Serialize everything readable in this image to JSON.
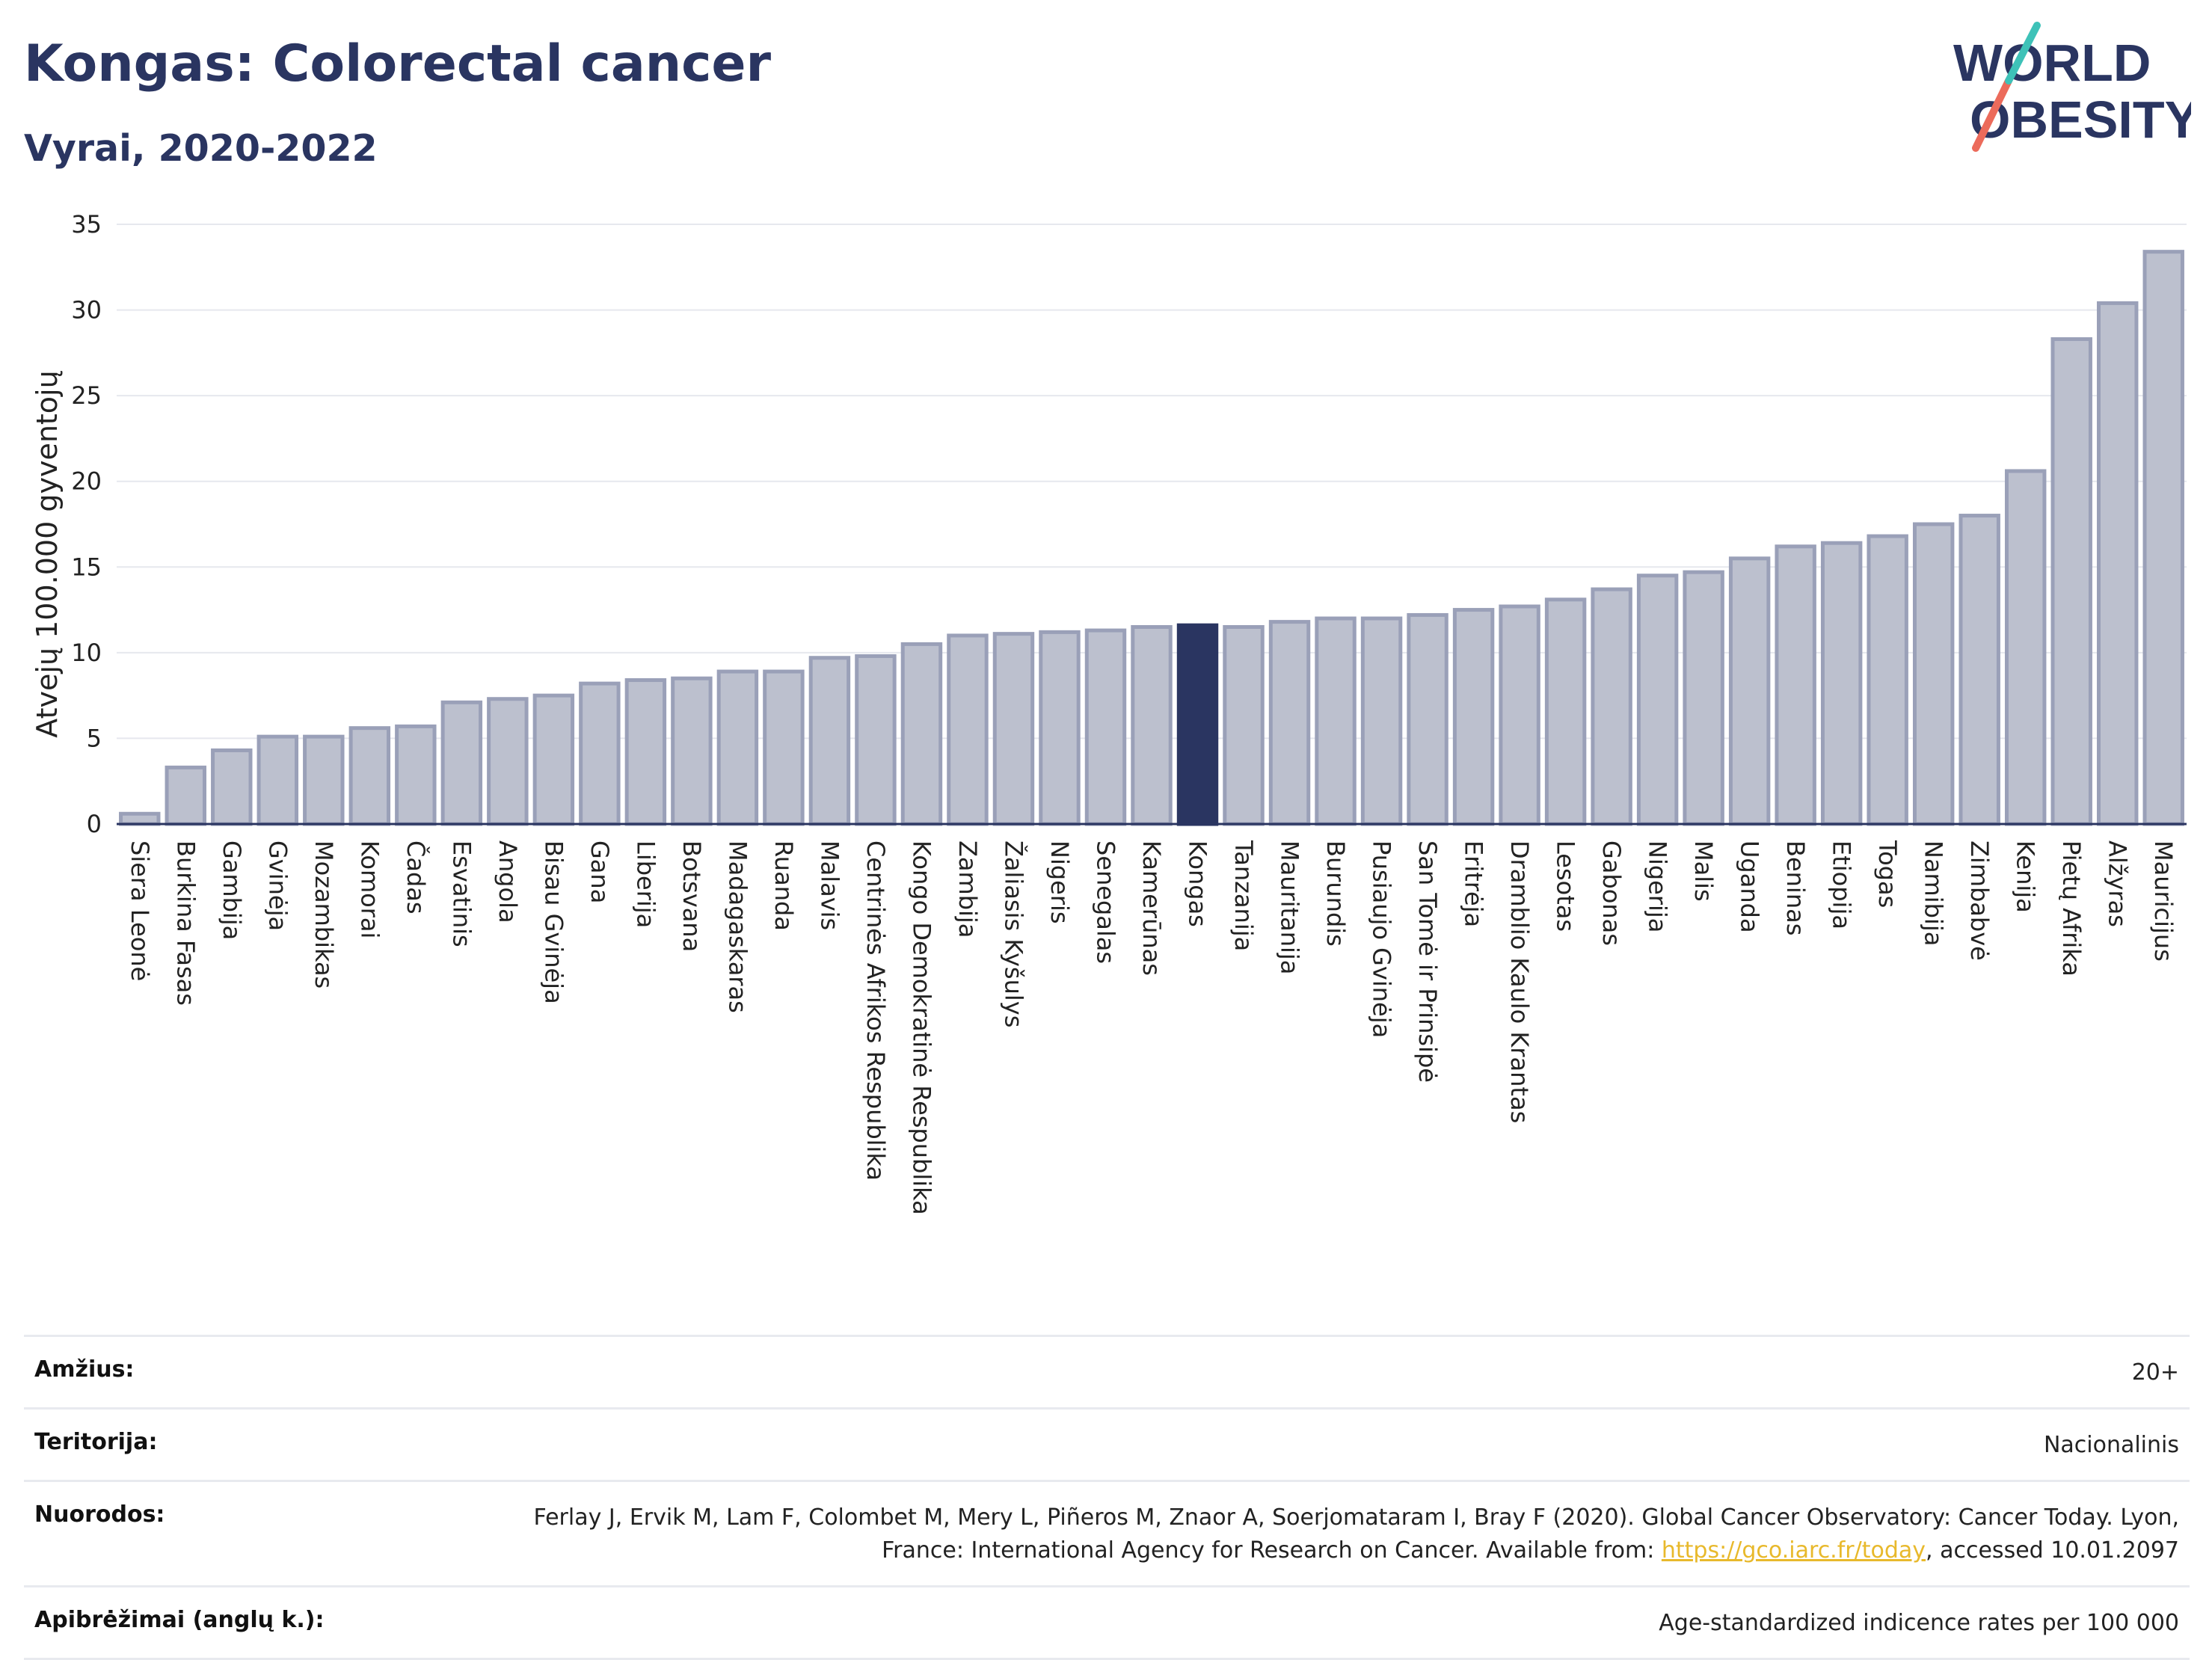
{
  "title": "Kongas: Colorectal cancer",
  "subtitle": "Vyrai, 2020-2022",
  "logo": {
    "line1": "WORLD",
    "line2": "OBESITY"
  },
  "colors": {
    "bar": "#bcc0ce",
    "bar_edge": "#9aa0b8",
    "highlight": "#2a3561",
    "title": "#2a3561",
    "grid": "#e6e8ee",
    "link": "#e8b92c"
  },
  "chart_data": {
    "type": "bar",
    "ylabel": "Atvejų 100.000 gyventojų",
    "ylim": [
      0,
      35
    ],
    "yticks": [
      0,
      5,
      10,
      15,
      20,
      25,
      30,
      35
    ],
    "grid": true,
    "highlight": "Kongas",
    "categories": [
      "Siera Leonė",
      "Burkina Fasas",
      "Gambija",
      "Gvinėja",
      "Mozambikas",
      "Komorai",
      "Čadas",
      "Esvatinis",
      "Angola",
      "Bisau Gvinėja",
      "Gana",
      "Liberija",
      "Botsvana",
      "Madagaskaras",
      "Ruanda",
      "Malavis",
      "Centrinės Afrikos Respublika",
      "Kongo Demokratinė Respublika",
      "Zambija",
      "Žaliasis Kyšulys",
      "Nigeris",
      "Senegalas",
      "Kamerūnas",
      "Kongas",
      "Tanzanija",
      "Mauritanija",
      "Burundis",
      "Pusiaujo Gvinėja",
      "San Tomė ir Prinsipė",
      "Eritrėja",
      "Dramblio Kaulo Krantas",
      "Lesotas",
      "Gabonas",
      "Nigerija",
      "Malis",
      "Uganda",
      "Beninas",
      "Etiopija",
      "Togas",
      "Namibija",
      "Zimbabvė",
      "Kenija",
      "Pietų Afrika",
      "Alžyras",
      "Mauricijus"
    ],
    "values": [
      0.6,
      3.3,
      4.3,
      5.1,
      5.1,
      5.6,
      5.7,
      7.1,
      7.3,
      7.5,
      8.2,
      8.4,
      8.5,
      8.9,
      8.9,
      9.7,
      9.8,
      10.5,
      11.0,
      11.1,
      11.2,
      11.3,
      11.5,
      11.6,
      11.5,
      11.8,
      12.0,
      12.0,
      12.2,
      12.5,
      12.7,
      13.1,
      13.7,
      14.5,
      14.7,
      15.5,
      16.2,
      16.4,
      16.8,
      17.5,
      18.0,
      20.6,
      28.3,
      30.4,
      33.4
    ]
  },
  "meta": {
    "age_label": "Amžius:",
    "age_value": "20+",
    "territory_label": "Teritorija:",
    "territory_value": "Nacionalinis",
    "refs_label": "Nuorodos:",
    "refs_value_pre": "Ferlay J, Ervik M, Lam F, Colombet M, Mery L, Piñeros M, Znaor A, Soerjomataram I, Bray F (2020). Global Cancer Observatory: Cancer Today. Lyon, France: International Agency for Research on Cancer. Available from: ",
    "refs_link": "https://gco.iarc.fr/today",
    "refs_value_post": ", accessed 10.01.2097",
    "defs_label": "Apibrėžimai (anglų k.):",
    "defs_value": "Age-standardized indicence rates per 100 000"
  }
}
